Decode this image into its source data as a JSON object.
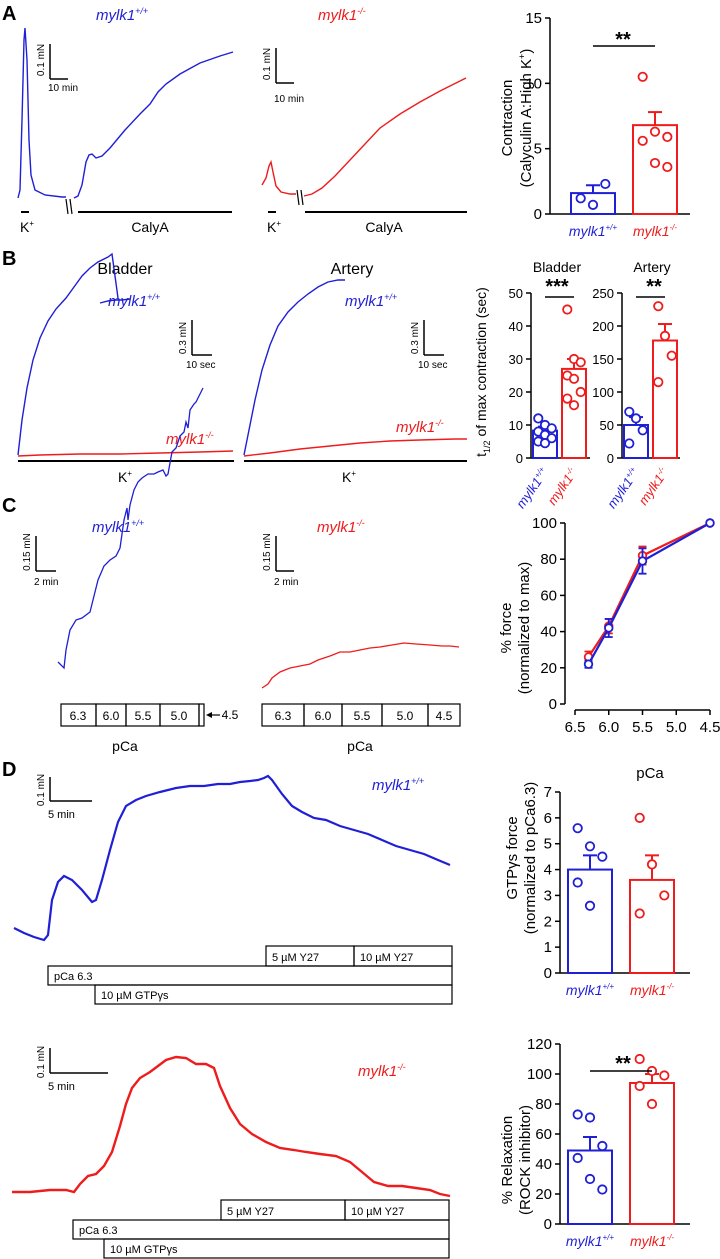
{
  "colors": {
    "wt": "#1f1fd6",
    "ko": "#ee1c1c",
    "axis": "#000000"
  },
  "labels": {
    "wt": "mylk1",
    "wt_sup": "+/+",
    "ko": "mylk1",
    "ko_sup": "-/-",
    "k_plus": "K",
    "plus": "+",
    "calya": "CalyA",
    "pca": "pCa",
    "bladder": "Bladder",
    "artery": "Artery",
    "y27_5": "5 µM Y27",
    "y27_10": "10 µM Y27",
    "pca63": "pCa 6.3",
    "gtp": "10 µM GTPγs"
  },
  "panels": {
    "a": "A",
    "b": "B",
    "c": "C",
    "d": "D"
  },
  "scalebars": {
    "a_wt": {
      "y": "0.1 mN",
      "x": "10 min"
    },
    "a_ko": {
      "y": "0.1 mN",
      "x": "10 min"
    },
    "b_wt": {
      "y": "0.3 mN",
      "x": "10 sec"
    },
    "b_ko": {
      "y": "0.3 mN",
      "x": "10 sec"
    },
    "c_wt": {
      "y": "0.15 mN",
      "x": "2 min"
    },
    "c_ko": {
      "y": "0.15 mN",
      "x": "2 min"
    },
    "d_wt": {
      "y": "0.1 mN",
      "x": "5 min"
    },
    "d_ko": {
      "y": "0.1 mN",
      "x": "5 min"
    }
  },
  "pca_steps": [
    "6.3",
    "6.0",
    "5.5",
    "5.0",
    "4.5"
  ],
  "significance": {
    "a": "**",
    "b_bladder": "***",
    "b_artery": "**",
    "d_relax": "**"
  },
  "chart_data": [
    {
      "id": "A",
      "type": "bar",
      "ylabel": "Contraction",
      "ylabel2": "(Calyculin A:High K",
      "ylim": [
        0,
        15
      ],
      "yticks": [
        0,
        5,
        10,
        15
      ],
      "categories": [
        "mylk1+/+",
        "mylk1-/-"
      ],
      "values": [
        1.6,
        6.8
      ],
      "sem": [
        0.6,
        1.0
      ],
      "points": [
        [
          1.2,
          0.7,
          2.3
        ],
        [
          10.5,
          6.3,
          5.9,
          5.6,
          3.9,
          3.6
        ]
      ]
    },
    {
      "id": "B-bladder",
      "type": "bar",
      "title": "Bladder",
      "ylabel": "t1/2 of max contraction (sec)",
      "ylim": [
        0,
        50
      ],
      "yticks": [
        0,
        10,
        20,
        30,
        40,
        50
      ],
      "categories": [
        "mylk1+/+",
        "mylk1-/-"
      ],
      "values": [
        8.3,
        27.0
      ],
      "sem": [
        1.2,
        3.0
      ],
      "points": [
        [
          12.0,
          10.0,
          9.0,
          8.0,
          7.0,
          6.0,
          5.0,
          4.5
        ],
        [
          45.0,
          30.0,
          29.0,
          25.0,
          24.0,
          20.0,
          18.0,
          16.0
        ]
      ]
    },
    {
      "id": "B-artery",
      "type": "bar",
      "title": "Artery",
      "ylim": [
        0,
        250
      ],
      "yticks": [
        0,
        50,
        100,
        150,
        200,
        250
      ],
      "categories": [
        "mylk1+/+",
        "mylk1-/-"
      ],
      "values": [
        50,
        178
      ],
      "sem": [
        12,
        25
      ],
      "points": [
        [
          70,
          60,
          42,
          22
        ],
        [
          230,
          185,
          155,
          115
        ]
      ]
    },
    {
      "id": "C",
      "type": "line",
      "xlabel": "pCa",
      "ylabel": "% force",
      "ylabel2": "(normalized to max)",
      "xlim": [
        6.5,
        4.5
      ],
      "xticks": [
        6.5,
        6.0,
        5.5,
        5.0,
        4.5
      ],
      "ylim": [
        0,
        100
      ],
      "yticks": [
        0,
        20,
        40,
        60,
        80,
        100
      ],
      "x": [
        6.3,
        6.0,
        5.5,
        4.5
      ],
      "series": [
        {
          "name": "mylk1+/+",
          "values": [
            22,
            42,
            79,
            100
          ],
          "sem": [
            2,
            5,
            7,
            0
          ]
        },
        {
          "name": "mylk1-/-",
          "values": [
            26,
            43,
            82,
            100
          ],
          "sem": [
            3,
            4,
            5,
            0
          ]
        }
      ]
    },
    {
      "id": "D-GTP",
      "type": "bar",
      "ylabel": "GTPγs force",
      "ylabel2": "(normalized to pCa6.3)",
      "ylim": [
        0,
        7
      ],
      "yticks": [
        0,
        1,
        2,
        3,
        4,
        5,
        6,
        7
      ],
      "categories": [
        "mylk1+/+",
        "mylk1-/-"
      ],
      "values": [
        4.0,
        3.6
      ],
      "sem": [
        0.55,
        0.95
      ],
      "points": [
        [
          5.6,
          4.9,
          4.5,
          3.5,
          2.6
        ],
        [
          6.0,
          4.2,
          3.0,
          2.3
        ]
      ]
    },
    {
      "id": "D-relax",
      "type": "bar",
      "ylabel": "% Relaxation",
      "ylabel2": "(ROCK inhibitor)",
      "ylim": [
        0,
        120
      ],
      "yticks": [
        0,
        20,
        40,
        60,
        80,
        100,
        120
      ],
      "categories": [
        "mylk1+/+",
        "mylk1-/-"
      ],
      "values": [
        49,
        94
      ],
      "sem": [
        9,
        6
      ],
      "points": [
        [
          73,
          71,
          52,
          44,
          30,
          23
        ],
        [
          110,
          102,
          99,
          92,
          80
        ]
      ]
    }
  ]
}
